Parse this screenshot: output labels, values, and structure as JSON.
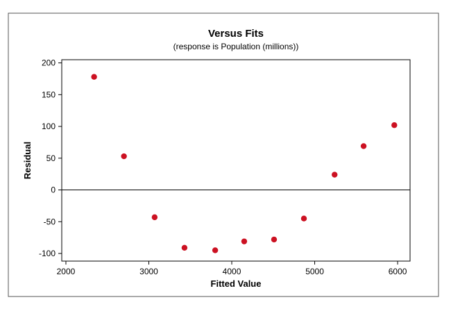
{
  "chart_data": {
    "type": "scatter",
    "title": "Versus Fits",
    "subtitle": "(response is Population (millions))",
    "xlabel": "Fitted Value",
    "ylabel": "Residual",
    "xlim": [
      1950,
      6150
    ],
    "ylim": [
      -112,
      205
    ],
    "xticks": [
      2000,
      3000,
      4000,
      5000,
      6000
    ],
    "yticks": [
      -100,
      -50,
      0,
      50,
      100,
      150,
      200
    ],
    "reference_line_y": 0,
    "grid": false,
    "marker_color": "#cc1122",
    "points": [
      {
        "x": 2340,
        "y": 178
      },
      {
        "x": 2700,
        "y": 53
      },
      {
        "x": 3070,
        "y": -43
      },
      {
        "x": 3430,
        "y": -91
      },
      {
        "x": 3800,
        "y": -95
      },
      {
        "x": 4150,
        "y": -81
      },
      {
        "x": 4510,
        "y": -78
      },
      {
        "x": 4870,
        "y": -45
      },
      {
        "x": 5240,
        "y": 24
      },
      {
        "x": 5590,
        "y": 69
      },
      {
        "x": 5960,
        "y": 102
      }
    ]
  }
}
